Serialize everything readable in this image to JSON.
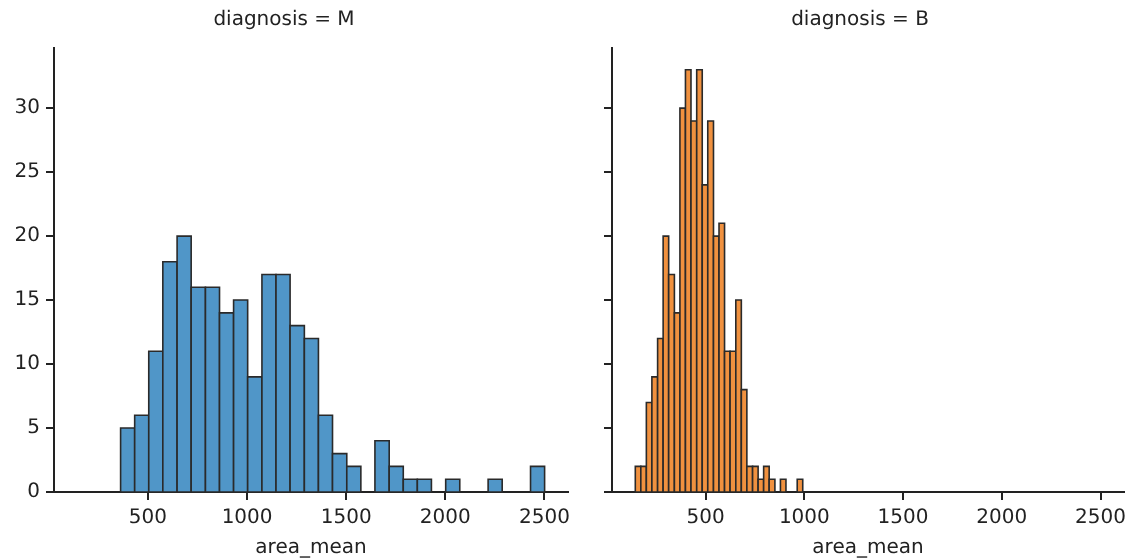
{
  "chart_data": [
    {
      "type": "histogram",
      "title": "diagnosis = M",
      "xlabel": "area_mean",
      "color": "#5096c8",
      "bins": [
        362,
        433,
        504,
        575,
        647,
        718,
        790,
        861,
        932,
        1003,
        1075,
        1146,
        1217,
        1289,
        1360,
        1431,
        1503,
        1574,
        1645,
        1717,
        1788,
        1859,
        1930,
        2002,
        2073,
        2144,
        2216,
        2287,
        2358,
        2430,
        2501
      ],
      "values": [
        5,
        6,
        11,
        18,
        20,
        16,
        16,
        14,
        15,
        9,
        17,
        17,
        13,
        12,
        6,
        3,
        2,
        0,
        4,
        2,
        1,
        1,
        0,
        1,
        0,
        0,
        1,
        0,
        0,
        2
      ],
      "xlim": [
        26,
        2619
      ],
      "xticks": [
        500,
        1000,
        1500,
        2000,
        2500
      ],
      "ylim": [
        0,
        34.7
      ],
      "yticks": [
        0,
        5,
        10,
        15,
        20,
        25,
        30
      ]
    },
    {
      "type": "histogram",
      "title": "diagnosis = B",
      "xlabel": "area_mean",
      "color": "#f0913f",
      "bins": [
        144,
        172,
        200,
        228,
        257,
        285,
        313,
        342,
        370,
        398,
        426,
        455,
        483,
        511,
        540,
        568,
        596,
        624,
        653,
        681,
        709,
        738,
        766,
        794,
        822,
        851,
        879,
        907,
        936,
        964,
        992
      ],
      "values": [
        2,
        2,
        7,
        9,
        12,
        20,
        17,
        14,
        30,
        33,
        29,
        33,
        24,
        29,
        20,
        21,
        11,
        11,
        15,
        8,
        2,
        2,
        1,
        2,
        1,
        0,
        1,
        0,
        0,
        1
      ],
      "xlim": [
        26,
        2619
      ],
      "xticks": [
        500,
        1000,
        1500,
        2000,
        2500
      ],
      "ylim": [
        0,
        34.7
      ],
      "yticks": [
        0,
        5,
        10,
        15,
        20,
        25,
        30
      ],
      "tick_labels": "x"
    }
  ]
}
